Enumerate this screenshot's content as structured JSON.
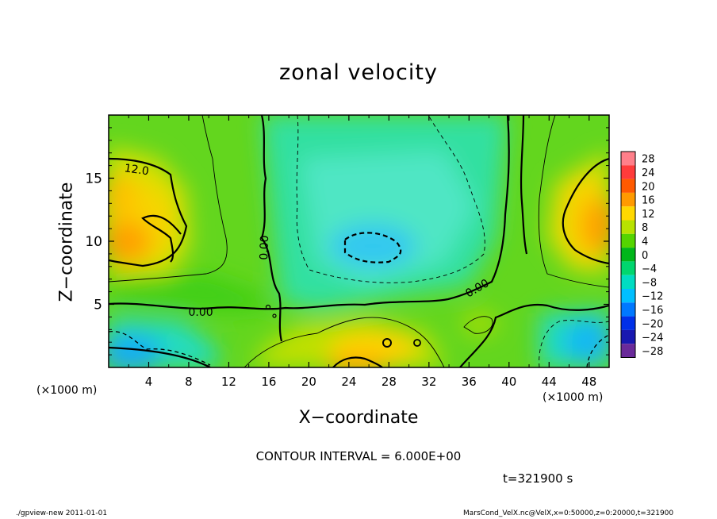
{
  "chart_data": {
    "type": "heatmap",
    "title": "zonal velocity",
    "xlabel": "X−coordinate",
    "ylabel": "Z−coordinate",
    "x_unit_label": "(×1000 m)",
    "xlim": [
      0,
      50
    ],
    "ylim": [
      0,
      20
    ],
    "x_ticks": [
      4,
      8,
      12,
      16,
      20,
      24,
      28,
      32,
      36,
      40,
      44,
      48
    ],
    "y_ticks": [
      5,
      10,
      15
    ],
    "colorbar": {
      "levels": [
        28,
        24,
        20,
        16,
        12,
        8,
        4,
        0,
        -4,
        -8,
        -12,
        -16,
        -20,
        -24,
        -28
      ],
      "labels": [
        "28",
        "24",
        "20",
        "16",
        "12",
        "8",
        "4",
        "0",
        "−4",
        "−8",
        "−12",
        "−16",
        "−20",
        "−24",
        "−28"
      ],
      "colors": [
        "#ff7f8a",
        "#ff3b3b",
        "#ff5a00",
        "#ff9a00",
        "#ffd800",
        "#b8e200",
        "#55d400",
        "#00b61a",
        "#00d66e",
        "#00dcc2",
        "#00bfff",
        "#0078ff",
        "#0030e8",
        "#1818b0",
        "#6a2a9a"
      ]
    },
    "contour_interval": 6.0,
    "contour_labels": [
      {
        "text": "12.0",
        "x": 2.8,
        "z": 15.7
      },
      {
        "text": "0.00",
        "x": 9.2,
        "z": 4.4
      },
      {
        "text": "0.00",
        "x": 15.5,
        "z": 9.5
      },
      {
        "text": "0.00",
        "x": 36.8,
        "z": 6.3
      }
    ],
    "field_features": [
      {
        "x": 2,
        "z": 11,
        "value": 16
      },
      {
        "x": 48,
        "z": 11,
        "value": 16
      },
      {
        "x": 25,
        "z": 9.5,
        "value": -12
      },
      {
        "x": 1.5,
        "z": 1.5,
        "value": -12
      },
      {
        "x": 47,
        "z": 1.5,
        "value": -12
      },
      {
        "x": 24,
        "z": 0.5,
        "value": 18
      },
      {
        "x": 36,
        "z": 3.2,
        "value": 6
      }
    ]
  },
  "labels": {
    "contour_interval": "CONTOUR INTERVAL = 6.000E+00",
    "time": "t=321900 s",
    "footer_left": "./gpview-new   2011-01-01",
    "footer_right": "MarsCond_VelX.nc@VelX,x=0:50000,z=0:20000,t=321900"
  }
}
